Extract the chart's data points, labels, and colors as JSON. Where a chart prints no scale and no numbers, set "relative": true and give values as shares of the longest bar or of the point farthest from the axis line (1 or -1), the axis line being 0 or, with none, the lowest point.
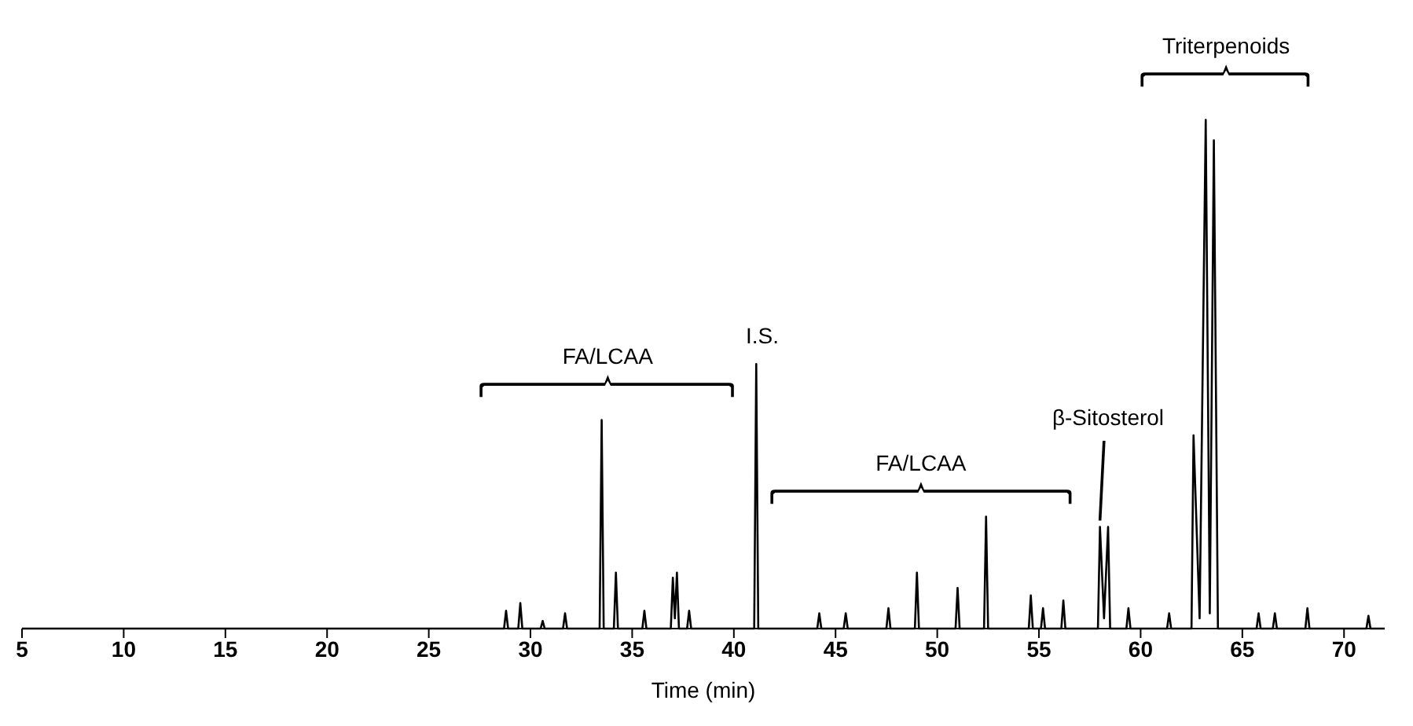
{
  "chart_data": {
    "type": "line",
    "relative": true,
    "xlabel": "Time (min)",
    "xlim": [
      5,
      72
    ],
    "xticks": [
      5,
      10,
      15,
      20,
      25,
      30,
      35,
      40,
      45,
      50,
      55,
      60,
      65,
      70
    ],
    "marker": "none",
    "legend": false,
    "grid": false,
    "annotations": [
      "FA/LCAA",
      "I.S.",
      "FA/LCAA",
      {
        "text": "β-Sitosterol",
        "x": 58,
        "y": 0.2
      },
      "Triterpenoids"
    ],
    "series": [
      {
        "color": "#000000",
        "x": [
          5,
          28.7,
          28.8,
          28.9,
          29.4,
          29.5,
          29.6,
          30.5,
          30.6,
          30.7,
          31.6,
          31.7,
          31.8,
          33.4,
          33.5,
          33.6,
          34.1,
          34.2,
          34.3,
          35.5,
          35.6,
          35.7,
          36.9,
          37.0,
          37.1,
          37.2,
          37.3,
          37.7,
          37.8,
          37.9,
          41.0,
          41.1,
          41.2,
          44.1,
          44.2,
          44.3,
          45.4,
          45.5,
          45.6,
          47.5,
          47.6,
          47.7,
          48.9,
          49.0,
          49.1,
          50.9,
          51.0,
          51.1,
          52.3,
          52.4,
          52.5,
          54.5,
          54.6,
          54.7,
          55.1,
          55.2,
          55.3,
          56.1,
          56.2,
          56.3,
          57.9,
          58.0,
          58.2,
          58.4,
          58.5,
          59.3,
          59.4,
          59.5,
          61.3,
          61.4,
          61.5,
          62.5,
          62.6,
          62.9,
          63.2,
          63.4,
          63.6,
          63.8,
          65.7,
          65.8,
          65.9,
          66.5,
          66.6,
          66.7,
          68.1,
          68.2,
          68.3,
          71.1,
          71.2,
          71.3,
          72
        ],
        "values": [
          0,
          0,
          0.035,
          0,
          0,
          0.05,
          0,
          0,
          0.015,
          0,
          0,
          0.03,
          0,
          0,
          0.41,
          0,
          0,
          0.11,
          0,
          0,
          0.035,
          0,
          0,
          0.1,
          0.02,
          0.11,
          0,
          0,
          0.035,
          0,
          0,
          0.52,
          0,
          0,
          0.03,
          0,
          0,
          0.03,
          0,
          0,
          0.04,
          0,
          0,
          0.11,
          0,
          0,
          0.08,
          0,
          0,
          0.22,
          0,
          0,
          0.065,
          0,
          0,
          0.04,
          0,
          0,
          0.055,
          0,
          0,
          0.2,
          0.02,
          0.2,
          0,
          0,
          0.04,
          0,
          0,
          0.03,
          0,
          0,
          0.38,
          0.02,
          1,
          0.03,
          0.96,
          0,
          0,
          0.03,
          0,
          0,
          0.03,
          0,
          0,
          0.04,
          0,
          0,
          0.025,
          0,
          0
        ]
      }
    ]
  }
}
